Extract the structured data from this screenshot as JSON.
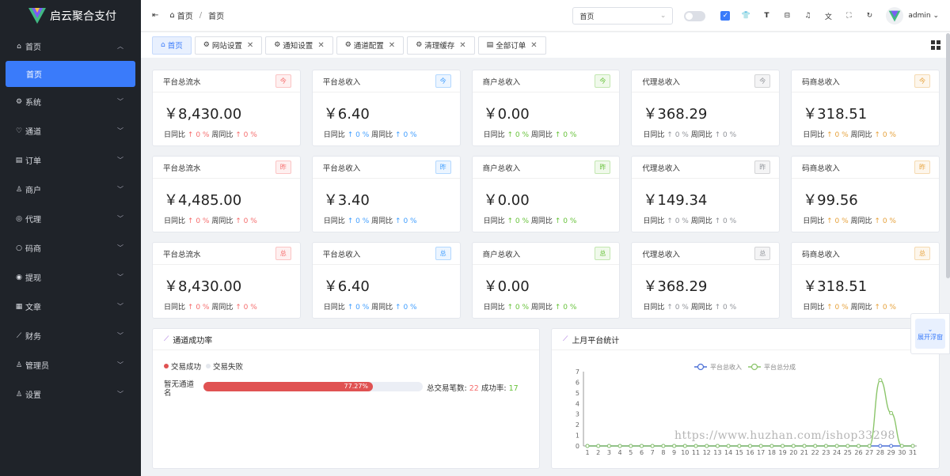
{
  "app": {
    "name": "启云聚合支付"
  },
  "sidebar": {
    "items": [
      {
        "icon": "home-icon",
        "glyph": "⌂",
        "label": "首页",
        "expanded": true
      },
      {
        "icon": "gear-icon",
        "glyph": "⚙",
        "label": "系统"
      },
      {
        "icon": "heart-icon",
        "glyph": "♡",
        "label": "通道"
      },
      {
        "icon": "order-icon",
        "glyph": "▤",
        "label": "订单"
      },
      {
        "icon": "user-icon",
        "glyph": "♙",
        "label": "商户"
      },
      {
        "icon": "agent-icon",
        "glyph": "◎",
        "label": "代理"
      },
      {
        "icon": "circle-icon",
        "glyph": "○",
        "label": "码商"
      },
      {
        "icon": "withdraw-icon",
        "glyph": "◉",
        "label": "提现"
      },
      {
        "icon": "article-icon",
        "glyph": "▦",
        "label": "文章"
      },
      {
        "icon": "chart-icon",
        "glyph": "⟋",
        "label": "财务"
      },
      {
        "icon": "admin-icon",
        "glyph": "♙",
        "label": "管理员"
      },
      {
        "icon": "settings-icon",
        "glyph": "♙",
        "label": "设置"
      }
    ],
    "sub_active": "首页"
  },
  "header": {
    "breadcrumb": [
      "首页",
      "首页"
    ],
    "select_value": "首页",
    "user": "admin"
  },
  "tabs": [
    {
      "label": "首页",
      "icon": "home-icon",
      "glyph": "⌂",
      "active": true,
      "closable": false
    },
    {
      "label": "网站设置",
      "icon": "gear-icon",
      "glyph": "⚙",
      "closable": true
    },
    {
      "label": "通知设置",
      "icon": "gear-icon",
      "glyph": "⚙",
      "closable": true
    },
    {
      "label": "通道配置",
      "icon": "gear-icon",
      "glyph": "⚙",
      "closable": true
    },
    {
      "label": "清理缓存",
      "icon": "gear-icon",
      "glyph": "⚙",
      "closable": true
    },
    {
      "label": "全部订单",
      "icon": "order-icon",
      "glyph": "▤",
      "closable": true
    }
  ],
  "stats": {
    "day_label": "日同比",
    "week_label": "周同比",
    "arrow": "↑",
    "rows": [
      [
        {
          "title": "平台总流水",
          "badge": "今",
          "color": "red",
          "amount": "￥8,430.00",
          "day": "0 %",
          "week": "0 %"
        },
        {
          "title": "平台总收入",
          "badge": "今",
          "color": "blue",
          "amount": "￥6.40",
          "day": "0 %",
          "week": "0 %"
        },
        {
          "title": "商户总收入",
          "badge": "今",
          "color": "green",
          "amount": "￥0.00",
          "day": "0 %",
          "week": "0 %"
        },
        {
          "title": "代理总收入",
          "badge": "今",
          "color": "gray",
          "amount": "￥368.29",
          "day": "0 %",
          "week": "0 %"
        },
        {
          "title": "码商总收入",
          "badge": "今",
          "color": "orange",
          "amount": "￥318.51",
          "day": "0 %",
          "week": "0 %"
        }
      ],
      [
        {
          "title": "平台总流水",
          "badge": "昨",
          "color": "red",
          "amount": "￥4,485.00",
          "day": "0 %",
          "week": "0 %"
        },
        {
          "title": "平台总收入",
          "badge": "昨",
          "color": "blue",
          "amount": "￥3.40",
          "day": "0 %",
          "week": "0 %"
        },
        {
          "title": "商户总收入",
          "badge": "昨",
          "color": "green",
          "amount": "￥0.00",
          "day": "0 %",
          "week": "0 %"
        },
        {
          "title": "代理总收入",
          "badge": "昨",
          "color": "gray",
          "amount": "￥149.34",
          "day": "0 %",
          "week": "0 %"
        },
        {
          "title": "码商总收入",
          "badge": "昨",
          "color": "orange",
          "amount": "￥99.56",
          "day": "0 %",
          "week": "0 %"
        }
      ],
      [
        {
          "title": "平台总流水",
          "badge": "总",
          "color": "red",
          "amount": "￥8,430.00",
          "day": "0 %",
          "week": "0 %"
        },
        {
          "title": "平台总收入",
          "badge": "总",
          "color": "blue",
          "amount": "￥6.40",
          "day": "0 %",
          "week": "0 %"
        },
        {
          "title": "商户总收入",
          "badge": "总",
          "color": "green",
          "amount": "￥0.00",
          "day": "0 %",
          "week": "0 %"
        },
        {
          "title": "代理总收入",
          "badge": "总",
          "color": "gray",
          "amount": "￥368.29",
          "day": "0 %",
          "week": "0 %"
        },
        {
          "title": "码商总收入",
          "badge": "总",
          "color": "orange",
          "amount": "￥318.51",
          "day": "0 %",
          "week": "0 %"
        }
      ]
    ]
  },
  "channel_panel": {
    "title": "通道成功率",
    "legend_success": "交易成功",
    "legend_fail": "交易失败",
    "row_label": "暂无通道名",
    "success_rate": 77.27,
    "rate_text": "77.27%",
    "total_label": "总交易笔数:",
    "total_value": "22",
    "success_label": "成功率:",
    "success_value": "17"
  },
  "month_panel": {
    "title": "上月平台统计"
  },
  "float_button": {
    "label": "展开浮窗"
  },
  "watermark": "https://www.huzhan.com/ishop33298",
  "colors": {
    "primary": "#3a7bfa",
    "sidebar": "#1f2329",
    "fail": "#e05252",
    "income_line": "#4a6fd6",
    "share_line": "#8bc56a"
  },
  "chart_data": {
    "type": "line",
    "x": [
      1,
      2,
      3,
      4,
      5,
      6,
      7,
      8,
      9,
      10,
      11,
      12,
      13,
      14,
      15,
      16,
      17,
      18,
      19,
      20,
      21,
      22,
      23,
      24,
      25,
      26,
      27,
      28,
      29,
      30,
      31
    ],
    "series": [
      {
        "name": "平台总收入",
        "values": [
          0,
          0,
          0,
          0,
          0,
          0,
          0,
          0,
          0,
          0,
          0,
          0,
          0,
          0,
          0,
          0,
          0,
          0,
          0,
          0,
          0,
          0,
          0,
          0,
          0,
          0,
          0,
          0,
          0,
          0,
          0
        ]
      },
      {
        "name": "平台总分成",
        "values": [
          0,
          0,
          0,
          0,
          0,
          0,
          0,
          0,
          0,
          0,
          0,
          0,
          0,
          0,
          0,
          0,
          0,
          0,
          0,
          0,
          0,
          0,
          0,
          0,
          0,
          0,
          0,
          6.2,
          3.1,
          0,
          0
        ]
      }
    ],
    "ylim": [
      0,
      7
    ],
    "yticks": [
      0,
      1,
      2,
      3,
      4,
      5,
      6,
      7
    ],
    "legend": "top-center",
    "grid": false
  }
}
